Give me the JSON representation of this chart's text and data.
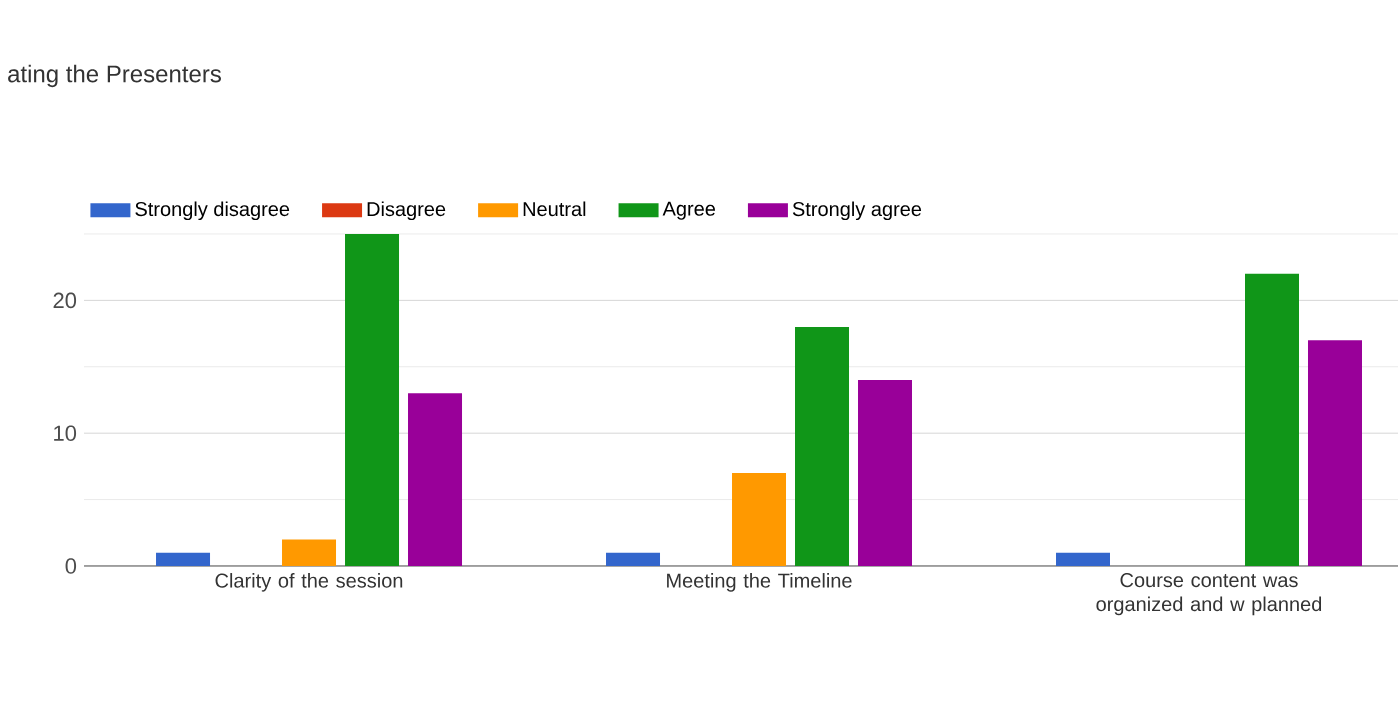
{
  "chart_data": {
    "type": "bar",
    "title": "ating the Presenters",
    "categories": [
      "Clarity of the session",
      "Meeting the Timeline",
      "Course content was organized and w planned"
    ],
    "series": [
      {
        "name": "Strongly disagree",
        "color": "#3366cc",
        "values": [
          1,
          1,
          1
        ]
      },
      {
        "name": "Disagree",
        "color": "#dc3912",
        "values": [
          0,
          0,
          0
        ]
      },
      {
        "name": "Neutral",
        "color": "#ff9900",
        "values": [
          2,
          7,
          0
        ]
      },
      {
        "name": "Agree",
        "color": "#109618",
        "values": [
          25,
          18,
          22
        ]
      },
      {
        "name": "Strongly agree",
        "color": "#990099",
        "values": [
          13,
          14,
          17
        ]
      }
    ],
    "ylim": [
      0,
      25
    ],
    "yticks": [
      0,
      {
        "value": 5,
        "label": null
      },
      10,
      {
        "value": 15,
        "label": null
      },
      20,
      {
        "value": 25,
        "label": null
      }
    ],
    "grid": "y",
    "legend": "top left"
  }
}
